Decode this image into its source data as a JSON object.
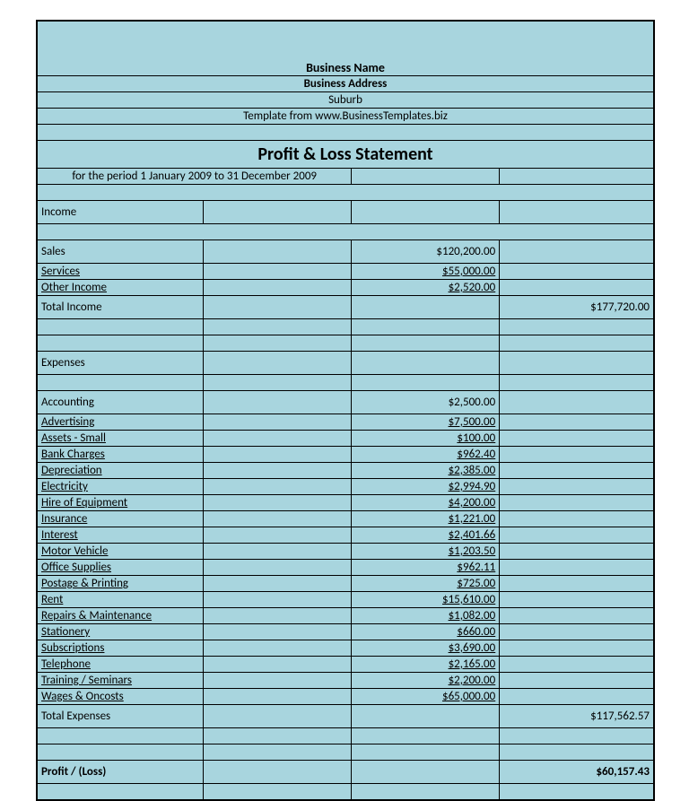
{
  "colors": {
    "cell_bg": "#a8d5de",
    "border": "#000000",
    "text": "#000000",
    "page_bg": "#ffffff"
  },
  "header": {
    "business_name": "Business Name",
    "business_address": "Business Address",
    "suburb": "Suburb",
    "template_source": "Template from www.BusinessTemplates.biz"
  },
  "title": "Profit & Loss Statement",
  "period": "for the period 1 January 2009 to 31 December 2009",
  "sections": {
    "income": {
      "heading": "Income",
      "items": [
        {
          "label": "Sales",
          "amount": "$120,200.00"
        },
        {
          "label": "Services",
          "amount": "$55,000.00"
        },
        {
          "label": "Other Income",
          "amount": "$2,520.00"
        }
      ],
      "total_label": "Total Income",
      "total_amount": "$177,720.00"
    },
    "expenses": {
      "heading": "Expenses",
      "items": [
        {
          "label": "Accounting",
          "amount": "$2,500.00"
        },
        {
          "label": "Advertising",
          "amount": "$7,500.00"
        },
        {
          "label": "Assets - Small",
          "amount": "$100.00"
        },
        {
          "label": "Bank Charges",
          "amount": "$962.40"
        },
        {
          "label": "Depreciation",
          "amount": "$2,385.00"
        },
        {
          "label": "Electricity",
          "amount": "$2,994.90"
        },
        {
          "label": "Hire of Equipment",
          "amount": "$4,200.00"
        },
        {
          "label": "Insurance",
          "amount": "$1,221.00"
        },
        {
          "label": "Interest",
          "amount": "$2,401.66"
        },
        {
          "label": "Motor Vehicle",
          "amount": "$1,203.50"
        },
        {
          "label": "Office Supplies",
          "amount": "$962.11"
        },
        {
          "label": "Postage & Printing",
          "amount": "$725.00"
        },
        {
          "label": "Rent",
          "amount": "$15,610.00"
        },
        {
          "label": "Repairs & Maintenance",
          "amount": "$1,082.00"
        },
        {
          "label": "Stationery",
          "amount": "$660.00"
        },
        {
          "label": "Subscriptions",
          "amount": "$3,690.00"
        },
        {
          "label": "Telephone",
          "amount": "$2,165.00"
        },
        {
          "label": "Training / Seminars",
          "amount": "$2,200.00"
        },
        {
          "label": "Wages & Oncosts",
          "amount": "$65,000.00"
        }
      ],
      "total_label": "Total Expenses",
      "total_amount": "$117,562.57"
    }
  },
  "profit": {
    "label": "Profit / (Loss)",
    "amount": "$60,157.43"
  }
}
